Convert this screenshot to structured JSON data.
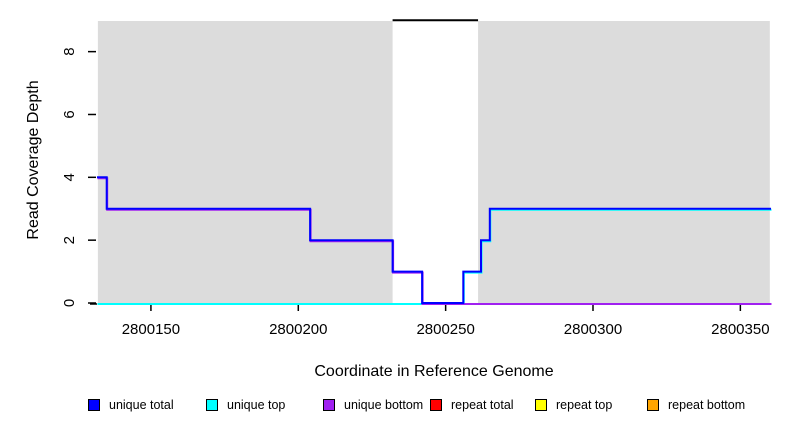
{
  "chart_data": {
    "type": "line",
    "subtype": "step-coverage",
    "title": "",
    "xlabel": "Coordinate in Reference Genome",
    "ylabel": "Read Coverage Depth",
    "xlim": [
      2800132,
      2800360
    ],
    "ylim": [
      0,
      9
    ],
    "x_ticks": [
      2800150,
      2800200,
      2800250,
      2800300,
      2800350
    ],
    "y_ticks": [
      0,
      2,
      4,
      6,
      8
    ],
    "grid": false,
    "legend_position": "bottom",
    "background_color": "#ffffff",
    "unique_region_color": "#DCDCDC",
    "unique_regions": [
      [
        2800132,
        2800232
      ],
      [
        2800261,
        2800360
      ]
    ],
    "repeat_marker": {
      "color": "#000000",
      "depth": 9,
      "region": [
        2800232,
        2800261
      ]
    },
    "series": [
      {
        "name": "unique top",
        "color": "#00FFFF",
        "start_depth": 0,
        "changes": [
          [
            2800256,
            1
          ],
          [
            2800262,
            2
          ],
          [
            2800265,
            3
          ]
        ]
      },
      {
        "name": "unique bottom",
        "color": "#A020F0",
        "start_depth": 4,
        "changes": [
          [
            2800135,
            3
          ],
          [
            2800204,
            2
          ],
          [
            2800232,
            1
          ],
          [
            2800242,
            0
          ]
        ]
      },
      {
        "name": "unique total",
        "color": "#0000FF",
        "start_depth": 4,
        "changes": [
          [
            2800135,
            3
          ],
          [
            2800204,
            2
          ],
          [
            2800232,
            1
          ],
          [
            2800242,
            0
          ],
          [
            2800256,
            1
          ],
          [
            2800262,
            2
          ],
          [
            2800265,
            3
          ]
        ]
      }
    ]
  },
  "legend": {
    "items": [
      {
        "label": "unique total",
        "color": "#0000FF"
      },
      {
        "label": "unique top",
        "color": "#00FFFF"
      },
      {
        "label": "unique bottom",
        "color": "#A020F0"
      },
      {
        "label": "repeat total",
        "color": "#FF0000"
      },
      {
        "label": "repeat top",
        "color": "#FFFF00"
      },
      {
        "label": "repeat bottom",
        "color": "#FFA500"
      }
    ]
  }
}
